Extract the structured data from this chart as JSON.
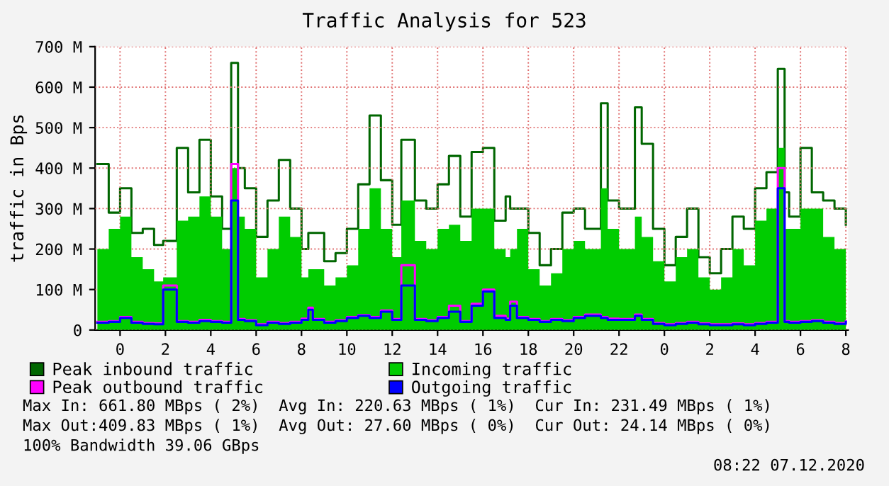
{
  "chart_data": {
    "type": "area",
    "title": "Traffic Analysis for 523",
    "ylabel": "traffic in Bps",
    "x": [
      "2020-12-05T23:00",
      "2020-12-05T23:30",
      "2020-12-06T00:00",
      "2020-12-06T00:30",
      "2020-12-06T01:00",
      "2020-12-06T01:30",
      "2020-12-06T01:54",
      "2020-12-06T02:30",
      "2020-12-06T03:00",
      "2020-12-06T03:30",
      "2020-12-06T04:00",
      "2020-12-06T04:30",
      "2020-12-06T04:54",
      "2020-12-06T05:12",
      "2020-12-06T05:30",
      "2020-12-06T06:00",
      "2020-12-06T06:30",
      "2020-12-06T07:00",
      "2020-12-06T07:30",
      "2020-12-06T08:00",
      "2020-12-06T08:18",
      "2020-12-06T08:30",
      "2020-12-06T09:00",
      "2020-12-06T09:30",
      "2020-12-06T10:00",
      "2020-12-06T10:30",
      "2020-12-06T11:00",
      "2020-12-06T11:30",
      "2020-12-06T12:00",
      "2020-12-06T12:24",
      "2020-12-06T13:00",
      "2020-12-06T13:30",
      "2020-12-06T14:00",
      "2020-12-06T14:30",
      "2020-12-06T15:00",
      "2020-12-06T15:30",
      "2020-12-06T16:00",
      "2020-12-06T16:30",
      "2020-12-06T17:00",
      "2020-12-06T17:12",
      "2020-12-06T17:30",
      "2020-12-06T18:00",
      "2020-12-06T18:30",
      "2020-12-06T19:00",
      "2020-12-06T19:30",
      "2020-12-06T20:00",
      "2020-12-06T20:30",
      "2020-12-06T21:12",
      "2020-12-06T21:30",
      "2020-12-06T22:00",
      "2020-12-06T22:42",
      "2020-12-06T23:00",
      "2020-12-06T23:30",
      "2020-12-07T00:00",
      "2020-12-07T00:30",
      "2020-12-07T01:00",
      "2020-12-07T01:30",
      "2020-12-07T02:00",
      "2020-12-07T02:30",
      "2020-12-07T03:00",
      "2020-12-07T03:30",
      "2020-12-07T04:00",
      "2020-12-07T04:30",
      "2020-12-07T05:00",
      "2020-12-07T05:18",
      "2020-12-07T05:30",
      "2020-12-07T06:00",
      "2020-12-07T06:30",
      "2020-12-07T07:00",
      "2020-12-07T07:30",
      "2020-12-07T08:00"
    ],
    "series": [
      {
        "name": "Peak inbound traffic",
        "type": "step",
        "color": "#006600",
        "values": [
          410,
          290,
          350,
          240,
          250,
          210,
          220,
          450,
          340,
          470,
          330,
          250,
          660,
          400,
          350,
          230,
          320,
          420,
          300,
          200,
          240,
          240,
          170,
          190,
          250,
          360,
          530,
          370,
          260,
          470,
          320,
          300,
          360,
          430,
          280,
          440,
          450,
          270,
          330,
          300,
          300,
          240,
          160,
          200,
          290,
          300,
          250,
          560,
          320,
          300,
          550,
          460,
          250,
          160,
          230,
          300,
          180,
          140,
          200,
          280,
          250,
          350,
          390,
          645,
          340,
          280,
          450,
          340,
          320,
          300,
          260
        ]
      },
      {
        "name": "Incoming traffic",
        "color": "#00cc00",
        "values": [
          200,
          250,
          280,
          180,
          150,
          120,
          130,
          270,
          280,
          330,
          280,
          200,
          400,
          280,
          250,
          130,
          200,
          280,
          230,
          130,
          150,
          150,
          110,
          130,
          160,
          250,
          350,
          250,
          180,
          320,
          220,
          200,
          250,
          260,
          220,
          300,
          300,
          200,
          180,
          200,
          250,
          150,
          110,
          140,
          200,
          220,
          200,
          350,
          250,
          200,
          280,
          230,
          170,
          120,
          180,
          200,
          130,
          100,
          130,
          200,
          160,
          270,
          300,
          450,
          250,
          250,
          300,
          300,
          230,
          200,
          230
        ]
      },
      {
        "name": "Peak outbound traffic",
        "type": "step",
        "color": "#ff00ff",
        "values": [
          20,
          22,
          32,
          20,
          17,
          16,
          110,
          22,
          20,
          25,
          22,
          20,
          410,
          27,
          24,
          14,
          20,
          17,
          20,
          28,
          55,
          27,
          20,
          24,
          32,
          37,
          32,
          48,
          27,
          160,
          27,
          24,
          32,
          60,
          22,
          65,
          100,
          35,
          28,
          70,
          32,
          27,
          22,
          27,
          24,
          32,
          38,
          32,
          28,
          27,
          38,
          27,
          17,
          14,
          17,
          20,
          16,
          14,
          14,
          16,
          14,
          17,
          20,
          400,
          22,
          20,
          22,
          24,
          20,
          17,
          22
        ]
      },
      {
        "name": "Outgoing traffic",
        "type": "step",
        "color": "#0000ff",
        "values": [
          18,
          20,
          30,
          18,
          15,
          14,
          100,
          20,
          18,
          22,
          20,
          18,
          320,
          25,
          22,
          12,
          18,
          15,
          18,
          25,
          50,
          25,
          18,
          22,
          30,
          35,
          30,
          45,
          25,
          110,
          25,
          22,
          30,
          45,
          20,
          60,
          95,
          30,
          25,
          60,
          30,
          25,
          20,
          25,
          22,
          30,
          35,
          30,
          25,
          25,
          35,
          25,
          15,
          12,
          15,
          18,
          14,
          12,
          12,
          14,
          12,
          15,
          18,
          350,
          20,
          18,
          20,
          22,
          18,
          15,
          20
        ]
      }
    ],
    "xlim": [
      "2020-12-05T22:54",
      "2020-12-07T08:06"
    ],
    "xticks": [
      {
        "value": "2020-12-06T00:00",
        "label": "0"
      },
      {
        "value": "2020-12-06T02:00",
        "label": "2"
      },
      {
        "value": "2020-12-06T04:00",
        "label": "4"
      },
      {
        "value": "2020-12-06T06:00",
        "label": "6"
      },
      {
        "value": "2020-12-06T08:00",
        "label": "8"
      },
      {
        "value": "2020-12-06T10:00",
        "label": "10"
      },
      {
        "value": "2020-12-06T12:00",
        "label": "12"
      },
      {
        "value": "2020-12-06T14:00",
        "label": "14"
      },
      {
        "value": "2020-12-06T16:00",
        "label": "16"
      },
      {
        "value": "2020-12-06T18:00",
        "label": "18"
      },
      {
        "value": "2020-12-06T20:00",
        "label": "20"
      },
      {
        "value": "2020-12-06T22:00",
        "label": "22"
      },
      {
        "value": "2020-12-07T00:00",
        "label": "0"
      },
      {
        "value": "2020-12-07T02:00",
        "label": "2"
      },
      {
        "value": "2020-12-07T04:00",
        "label": "4"
      },
      {
        "value": "2020-12-07T06:00",
        "label": "6"
      },
      {
        "value": "2020-12-07T08:00",
        "label": "8"
      }
    ],
    "ylim": [
      0,
      700
    ],
    "yticks": [
      0,
      {
        "value": 100,
        "label": "100 M"
      },
      {
        "value": 200,
        "label": "200 M"
      },
      {
        "value": 300,
        "label": "300 M"
      },
      {
        "value": 400,
        "label": "400 M"
      },
      {
        "value": 500,
        "label": "500 M"
      },
      {
        "value": 600,
        "label": "600 M"
      },
      {
        "value": 700,
        "label": "700 M"
      }
    ],
    "grid": true,
    "legend": "bottom",
    "annotations": [
      "Max In: 661.80 MBps ( 2%)  Avg In: 220.63 MBps ( 1%)  Cur In: 231.49 MBps ( 1%)",
      "Max Out:409.83 MBps ( 1%)  Avg Out: 27.60 MBps ( 0%)  Cur Out: 24.14 MBps ( 0%)",
      "100% Bandwidth 39.06 GBps",
      "08:22 07.12.2020"
    ]
  }
}
